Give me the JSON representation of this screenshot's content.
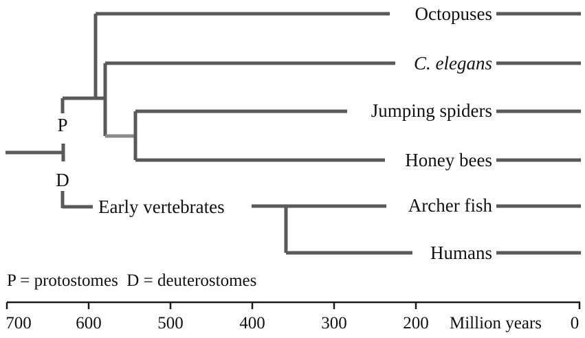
{
  "taxa": {
    "octopuses": "Octopuses",
    "c_elegans": "C. elegans",
    "jumping_spiders": "Jumping spiders",
    "honey_bees": "Honey bees",
    "archer_fish": "Archer fish",
    "humans": "Humans"
  },
  "nodes": {
    "protostome_marker": "P",
    "deuterostome_marker": "D",
    "early_vertebrates": "Early vertebrates"
  },
  "key_text": "P = protostomes  D = deuterostomes",
  "time_axis": {
    "unit_label": "Million years",
    "ticks": [
      "700",
      "600",
      "500",
      "400",
      "300",
      "200",
      "0"
    ]
  }
}
